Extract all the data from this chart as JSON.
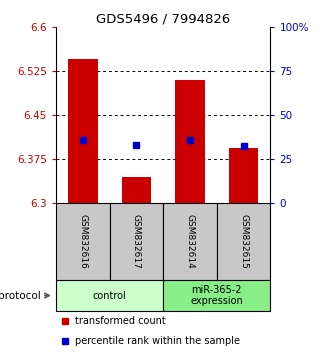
{
  "title": "GDS5496 / 7994826",
  "samples": [
    "GSM832616",
    "GSM832617",
    "GSM832614",
    "GSM832615"
  ],
  "red_values": [
    6.545,
    6.345,
    6.51,
    6.393
  ],
  "blue_values": [
    6.408,
    6.398,
    6.408,
    6.397
  ],
  "y_min": 6.3,
  "y_max": 6.6,
  "y_ticks_left": [
    6.3,
    6.375,
    6.45,
    6.525,
    6.6
  ],
  "y_ticks_right": [
    0,
    25,
    50,
    75,
    100
  ],
  "bar_color": "#cc0000",
  "dot_color": "#0000cc",
  "bar_width": 0.55,
  "groups": [
    {
      "label": "control",
      "samples": [
        0,
        1
      ],
      "color": "#ccffcc"
    },
    {
      "label": "miR-365-2\nexpression",
      "samples": [
        2,
        3
      ],
      "color": "#88ee88"
    }
  ],
  "protocol_label": "protocol",
  "legend_red": "transformed count",
  "legend_blue": "percentile rank within the sample",
  "bg_color": "#ffffff",
  "sample_box_color": "#c8c8c8"
}
